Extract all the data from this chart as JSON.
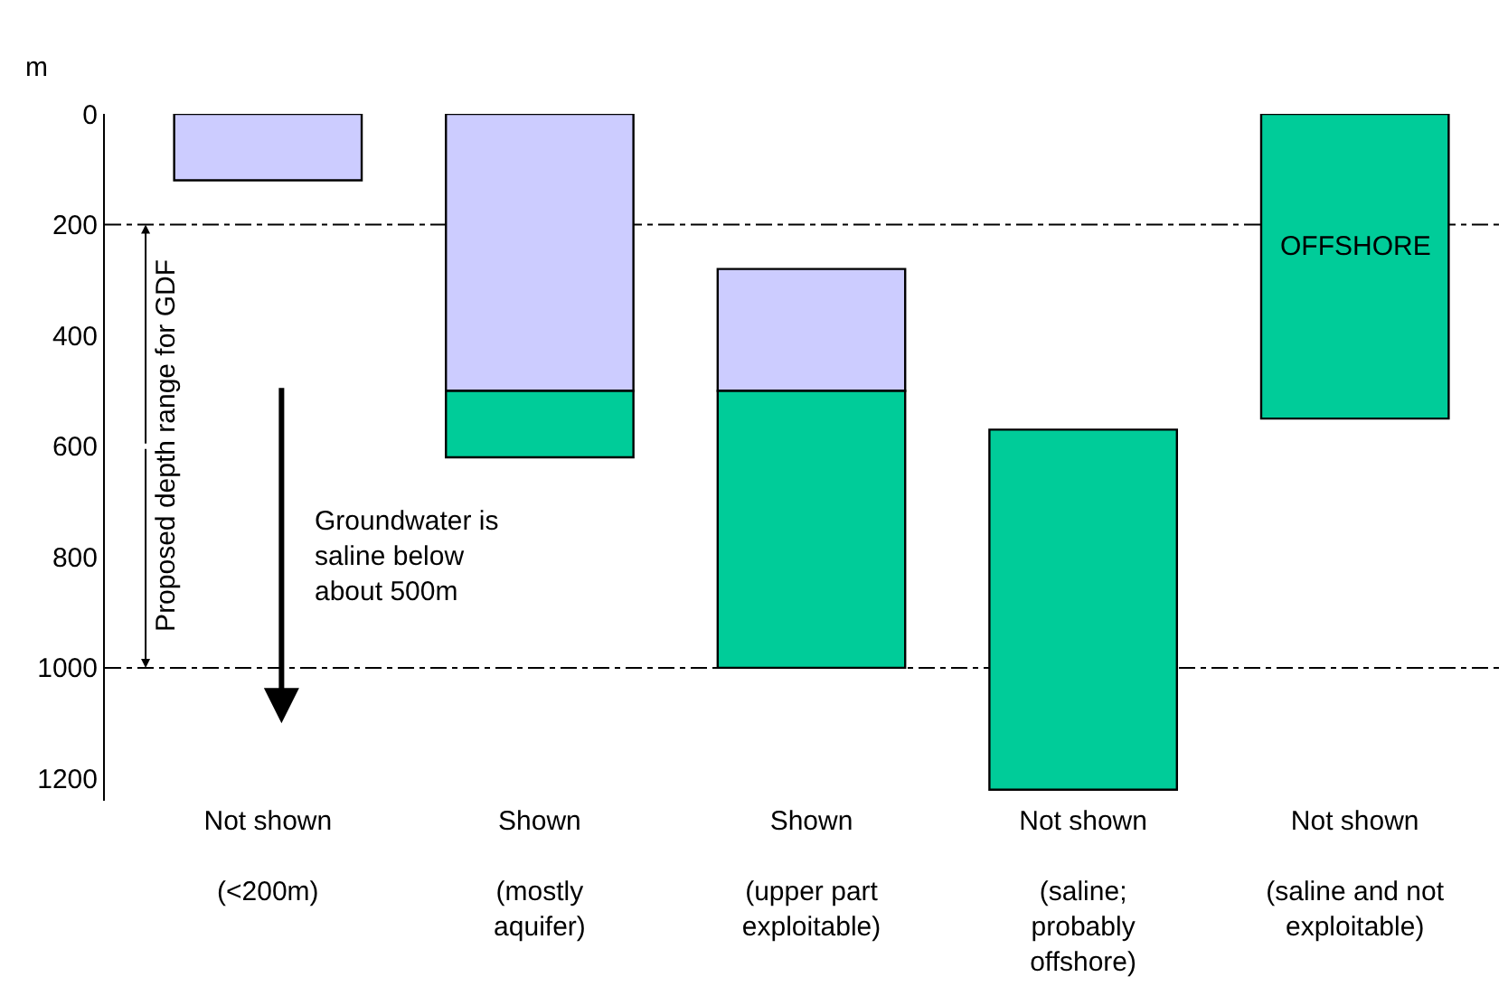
{
  "chart_data": {
    "type": "bar",
    "ylabel": "m",
    "categories": [
      "Not shown\n\n(<200m)",
      "Shown\n\n(mostly\naquifer)",
      "Shown\n\n(upper part\nexploitable)",
      "Not shown\n\n(saline;\nprobably\noffshore)",
      "Not shown\n\n(saline and not\nexploitable)"
    ],
    "series": [
      {
        "color": "#ccccff",
        "base": [
          0,
          0,
          280,
          null,
          null
        ],
        "values": [
          120,
          500,
          220,
          null,
          null
        ]
      },
      {
        "color": "#00cc99",
        "base": [
          null,
          500,
          500,
          570,
          0
        ],
        "values": [
          null,
          120,
          500,
          650,
          550
        ]
      }
    ],
    "ylim": [
      1240,
      0
    ],
    "yticks": [
      0,
      200,
      400,
      600,
      800,
      1000,
      1200
    ],
    "grid": false,
    "legend": false,
    "ref_lines": [
      {
        "axis": "y",
        "value": 200,
        "line_style": "dashdot"
      },
      {
        "axis": "y",
        "value": 1000,
        "line_style": "dashdot"
      }
    ],
    "annotations": [
      "Proposed depth range for GDF",
      "Groundwater is\nsaline below\nabout 500m",
      "OFFSHORE"
    ]
  }
}
